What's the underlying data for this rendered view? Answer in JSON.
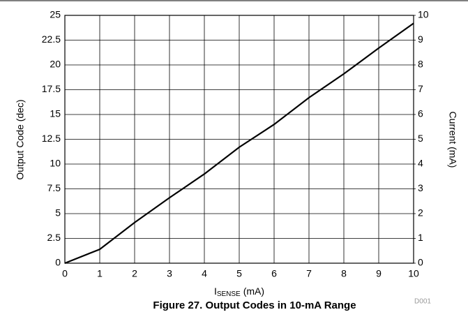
{
  "chart_data": {
    "type": "line",
    "x": [
      0,
      1,
      2,
      3,
      4,
      5,
      6,
      7,
      8,
      9,
      10
    ],
    "values": [
      0,
      1.4,
      4.1,
      6.6,
      9.0,
      11.7,
      14.0,
      16.7,
      19.1,
      21.7,
      24.2
    ],
    "color": "#000000",
    "xlim": [
      0,
      10
    ],
    "xticks": [
      0,
      1,
      2,
      3,
      4,
      5,
      6,
      7,
      8,
      9,
      10
    ],
    "ylim": [
      0,
      25
    ],
    "yticks": [
      0,
      2.5,
      5,
      7.5,
      10,
      12.5,
      15,
      17.5,
      20,
      22.5,
      25
    ],
    "y2lim": [
      0,
      10
    ],
    "y2ticks": [
      0,
      1,
      2,
      3,
      4,
      5,
      6,
      7,
      8,
      9,
      10
    ],
    "grid": true,
    "y_label": "Output Code (dec)",
    "y2_label": "Current (mA)",
    "x_label": {
      "main": "I",
      "subscript": "SENSE",
      "unit": "(mA)"
    },
    "annotation": "D001",
    "caption": "Figure 27. Output Codes in 10-mA Range"
  }
}
